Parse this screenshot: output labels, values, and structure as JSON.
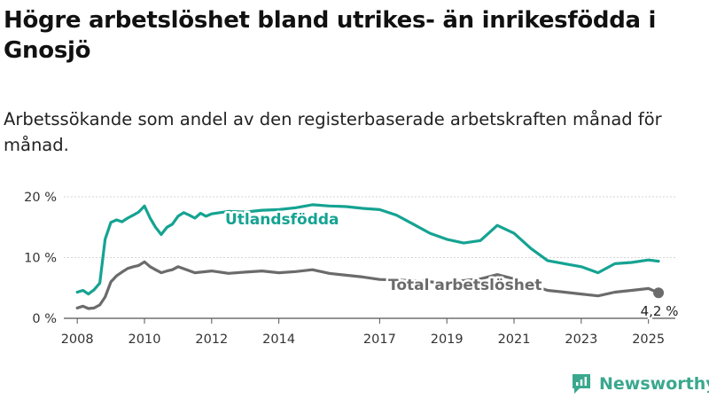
{
  "title": "Högre arbetslöshet bland utrikes- än inrikesfödda i Gnosjö",
  "subtitle": "Arbetssökande som andel av den registerbaserade arbetskraften månad för månad.",
  "brand": {
    "name": "Newsworthy",
    "icon": "newsworthy-logo-icon",
    "color": "#3aa88e"
  },
  "chart_data": {
    "type": "line",
    "title": "Högre arbetslöshet bland utrikes- än inrikesfödda i Gnosjö",
    "subtitle": "Arbetssökande som andel av den registerbaserade arbetskraften månad för månad.",
    "xlabel": "",
    "ylabel": "",
    "ylim": [
      0,
      20
    ],
    "yticks": [
      0,
      10,
      20
    ],
    "ytick_labels": [
      "0 %",
      "10 %",
      "20 %"
    ],
    "xticks": [
      2008,
      2010,
      2012,
      2014,
      2017,
      2019,
      2021,
      2023,
      2025
    ],
    "grid": true,
    "legend": "inline labels",
    "series": [
      {
        "name": "Utlandsfödda",
        "color": "#15a392",
        "x": [
          2008.0,
          2008.17,
          2008.33,
          2008.5,
          2008.67,
          2008.83,
          2009.0,
          2009.17,
          2009.33,
          2009.5,
          2009.67,
          2009.83,
          2010.0,
          2010.17,
          2010.33,
          2010.5,
          2010.67,
          2010.83,
          2011.0,
          2011.17,
          2011.33,
          2011.5,
          2011.67,
          2011.83,
          2012.0,
          2012.5,
          2013.0,
          2013.5,
          2014.0,
          2014.5,
          2015.0,
          2015.5,
          2016.0,
          2016.5,
          2017.0,
          2017.5,
          2018.0,
          2018.5,
          2019.0,
          2019.5,
          2020.0,
          2020.5,
          2021.0,
          2021.5,
          2022.0,
          2022.5,
          2023.0,
          2023.5,
          2024.0,
          2024.5,
          2025.0,
          2025.3
        ],
        "values": [
          4.3,
          4.6,
          4.0,
          4.7,
          5.8,
          13.0,
          15.8,
          16.2,
          15.9,
          16.5,
          17.0,
          17.5,
          18.5,
          16.5,
          15.0,
          13.8,
          15.0,
          15.5,
          16.8,
          17.4,
          17.0,
          16.5,
          17.3,
          16.8,
          17.2,
          17.6,
          17.5,
          17.8,
          17.9,
          18.2,
          18.7,
          18.5,
          18.4,
          18.1,
          17.9,
          17.0,
          15.5,
          14.0,
          13.0,
          12.4,
          12.8,
          15.3,
          14.0,
          11.5,
          9.5,
          9.0,
          8.5,
          7.5,
          9.0,
          9.2,
          9.6,
          9.4
        ]
      },
      {
        "name": "Total arbetslöshet",
        "color": "#6b6b6b",
        "x": [
          2008.0,
          2008.17,
          2008.33,
          2008.5,
          2008.67,
          2008.83,
          2009.0,
          2009.17,
          2009.33,
          2009.5,
          2009.67,
          2009.83,
          2010.0,
          2010.17,
          2010.33,
          2010.5,
          2010.67,
          2010.83,
          2011.0,
          2011.5,
          2012.0,
          2012.5,
          2013.0,
          2013.5,
          2014.0,
          2014.5,
          2015.0,
          2015.5,
          2016.0,
          2016.5,
          2017.0,
          2017.5,
          2018.0,
          2018.5,
          2019.0,
          2019.5,
          2020.0,
          2020.5,
          2021.0,
          2021.5,
          2022.0,
          2022.5,
          2023.0,
          2023.5,
          2024.0,
          2024.5,
          2025.0,
          2025.3
        ],
        "values": [
          1.7,
          2.0,
          1.6,
          1.7,
          2.2,
          3.5,
          6.0,
          7.0,
          7.6,
          8.2,
          8.5,
          8.7,
          9.3,
          8.5,
          8.0,
          7.5,
          7.8,
          8.0,
          8.5,
          7.5,
          7.8,
          7.4,
          7.6,
          7.8,
          7.5,
          7.7,
          8.0,
          7.4,
          7.1,
          6.8,
          6.4,
          6.3,
          6.2,
          6.0,
          5.8,
          6.2,
          6.5,
          7.2,
          6.5,
          5.5,
          4.6,
          4.3,
          4.0,
          3.7,
          4.3,
          4.6,
          4.9,
          4.2
        ]
      }
    ],
    "end_annotation": {
      "series": "Total arbetslöshet",
      "label": "4,2 %"
    }
  }
}
